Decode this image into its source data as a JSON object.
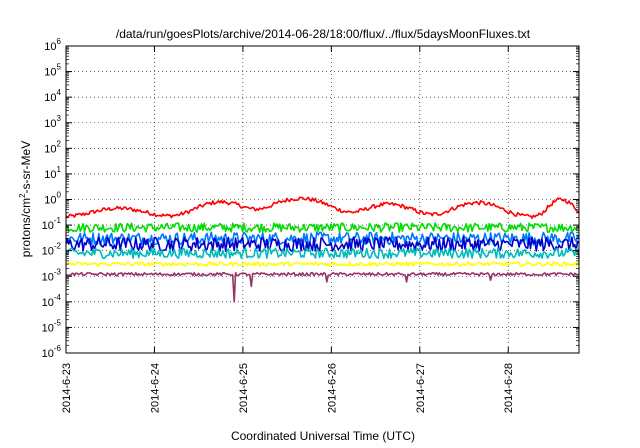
{
  "chart_data": {
    "type": "line",
    "title": "/data/run/goesPlots/archive/2014-06-28/18:00/flux/../flux/5daysMoonFluxes.txt",
    "xlabel": "Coordinated Universal Time (UTC)",
    "ylabel": "protons/cm²-s-sr-MeV",
    "y_scale": "log",
    "ylim_exp": [
      -6,
      6
    ],
    "y_ticks": [
      {
        "base": "10",
        "exp": "-6",
        "v": -6
      },
      {
        "base": "10",
        "exp": "-5",
        "v": -5
      },
      {
        "base": "10",
        "exp": "-4",
        "v": -4
      },
      {
        "base": "10",
        "exp": "-3",
        "v": -3
      },
      {
        "base": "10",
        "exp": "-2",
        "v": -2
      },
      {
        "base": "10",
        "exp": "-1",
        "v": -1
      },
      {
        "base": "10",
        "exp": "0",
        "v": 0
      },
      {
        "base": "10",
        "exp": "1",
        "v": 1
      },
      {
        "base": "10",
        "exp": "2",
        "v": 2
      },
      {
        "base": "10",
        "exp": "3",
        "v": 3
      },
      {
        "base": "10",
        "exp": "4",
        "v": 4
      },
      {
        "base": "10",
        "exp": "5",
        "v": 5
      },
      {
        "base": "10",
        "exp": "6",
        "v": 6
      }
    ],
    "x_ticks": [
      "2014-6-23",
      "2014-6-24",
      "2014-6-25",
      "2014-6-26",
      "2014-6-27",
      "2014-6-28"
    ],
    "x_range_days": [
      0,
      5.8
    ],
    "grid": true,
    "series": [
      {
        "color": "#ff0000",
        "level": 0.2,
        "amp": 0.45,
        "noise": 0.08,
        "bumps": [
          [
            0.6,
            0.25,
            0.35
          ],
          [
            1.75,
            0.6,
            0.3
          ],
          [
            2.65,
            0.9,
            0.35
          ],
          [
            3.65,
            0.45,
            0.3
          ],
          [
            4.65,
            0.55,
            0.3
          ],
          [
            5.6,
            0.8,
            0.15
          ]
        ]
      },
      {
        "color": "#00dd00",
        "level": 0.08,
        "amp": 0.0,
        "noise": 0.18,
        "bumps": []
      },
      {
        "color": "#0077ff",
        "level": 0.03,
        "amp": 0.0,
        "noise": 0.25,
        "bumps": []
      },
      {
        "color": "#0000cc",
        "level": 0.018,
        "amp": 0.0,
        "noise": 0.28,
        "bumps": []
      },
      {
        "color": "#00bbbb",
        "level": 0.008,
        "amp": 0.0,
        "noise": 0.2,
        "bumps": []
      },
      {
        "color": "#ffff00",
        "level": 0.003,
        "amp": 0.0,
        "noise": 0.08,
        "bumps": []
      },
      {
        "color": "#993366",
        "level": 0.0012,
        "amp": 0.0,
        "noise": 0.06,
        "bumps": [],
        "dips": [
          [
            1.9,
            0.0001
          ],
          [
            2.1,
            0.0004
          ],
          [
            2.95,
            0.0006
          ],
          [
            3.85,
            0.0006
          ],
          [
            4.8,
            0.0007
          ]
        ]
      }
    ]
  }
}
